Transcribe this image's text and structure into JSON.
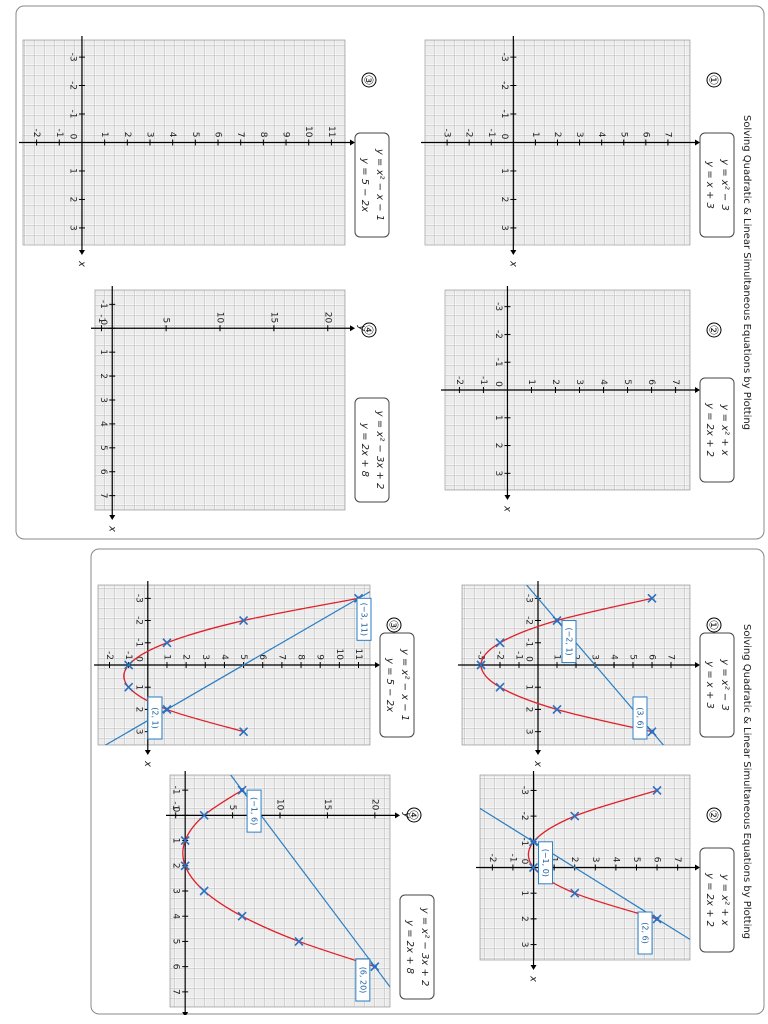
{
  "pages": [
    {
      "title": "Solving Quadratic & Linear Simultaneous Equations by Plotting",
      "graphs": [
        {
          "number": "①",
          "equations": [
            "y = x² − 3",
            "y = x + 3"
          ],
          "x_label": "x",
          "y_label": "y",
          "xlim": [
            -3.6,
            3.6
          ],
          "ylim": [
            -4,
            8
          ],
          "xticks": [
            -3,
            -2,
            -1,
            0,
            1,
            2,
            3
          ],
          "yticks": [
            -3,
            -2,
            -1,
            1,
            2,
            3,
            4,
            5,
            6,
            7
          ]
        },
        {
          "number": "②",
          "equations": [
            "y = x² + x",
            "y = 2x + 2"
          ],
          "x_label": "x",
          "y_label": "y",
          "xlim": [
            -3.6,
            3.6
          ],
          "ylim": [
            -2.6,
            7.6
          ],
          "xticks": [
            -3,
            -2,
            -1,
            0,
            1,
            2,
            3
          ],
          "yticks": [
            -2,
            -1,
            1,
            2,
            3,
            4,
            5,
            6,
            7
          ]
        },
        {
          "number": "③",
          "equations": [
            "y = x² − x − 1",
            "y = 5 − 2x"
          ],
          "x_label": "x",
          "y_label": "y",
          "xlim": [
            -3.6,
            3.6
          ],
          "ylim": [
            -2.6,
            11.6
          ],
          "xticks": [
            -3,
            -2,
            -1,
            0,
            1,
            2,
            3
          ],
          "yticks": [
            -2,
            -1,
            1,
            2,
            3,
            4,
            5,
            6,
            7,
            8,
            9,
            10,
            11
          ]
        },
        {
          "number": "④",
          "equations": [
            "y = x² − 3x + 2",
            "y = 2x + 8"
          ],
          "x_label": "x",
          "y_label": "y",
          "xlim": [
            -1.6,
            7.6
          ],
          "ylim": [
            -1.6,
            21.6
          ],
          "xticks": [
            -1,
            0,
            1,
            2,
            3,
            4,
            5,
            6,
            7
          ],
          "yticks": [
            -1,
            5,
            10,
            15,
            20
          ]
        }
      ]
    },
    {
      "title": "Solving Quadratic & Linear Simultaneous Equations by Plotting",
      "graphs": [
        {
          "number": "①",
          "equations": [
            "y = x² − 3",
            "y = x + 3"
          ],
          "x_label": "x",
          "y_label": "y",
          "xlim": [
            -3.6,
            3.6
          ],
          "ylim": [
            -4,
            8
          ],
          "xticks": [
            -3,
            -2,
            -1,
            0,
            1,
            2,
            3
          ],
          "yticks": [
            -3,
            -2,
            -1,
            1,
            2,
            3,
            4,
            5,
            6,
            7
          ],
          "curve": {
            "x": [
              -3,
              -2,
              -1,
              0,
              1,
              2,
              3
            ],
            "y": [
              6,
              1,
              -2,
              -3,
              -2,
              1,
              6
            ]
          },
          "line": {
            "x": [
              -2,
              3
            ],
            "y": [
              1,
              6
            ]
          },
          "solutions": [
            {
              "x": -2,
              "y": 1,
              "label": "(−2, 1)"
            },
            {
              "x": 3,
              "y": 6,
              "label": "(3, 6)"
            }
          ]
        },
        {
          "number": "②",
          "equations": [
            "y = x² + x",
            "y = 2x + 2"
          ],
          "x_label": "x",
          "y_label": "y",
          "xlim": [
            -3.6,
            3.6
          ],
          "ylim": [
            -2.6,
            7.6
          ],
          "xticks": [
            -3,
            -2,
            -1,
            0,
            1,
            2,
            3
          ],
          "yticks": [
            -2,
            -1,
            1,
            2,
            3,
            4,
            5,
            6,
            7
          ],
          "curve": {
            "x": [
              -3,
              -2,
              -1,
              0,
              1,
              2
            ],
            "y": [
              6,
              2,
              0,
              0,
              2,
              6
            ]
          },
          "line": {
            "x": [
              -1,
              2
            ],
            "y": [
              0,
              6
            ]
          },
          "solutions": [
            {
              "x": -1,
              "y": 0,
              "label": "(−1, 0)"
            },
            {
              "x": 2,
              "y": 6,
              "label": "(2, 6)"
            }
          ]
        },
        {
          "number": "③",
          "equations": [
            "y = x² − x − 1",
            "y = 5 − 2x"
          ],
          "x_label": "x",
          "y_label": "y",
          "xlim": [
            -3.6,
            3.6
          ],
          "ylim": [
            -2.6,
            11.6
          ],
          "xticks": [
            -3,
            -2,
            -1,
            0,
            1,
            2,
            3
          ],
          "yticks": [
            -2,
            -1,
            1,
            2,
            3,
            4,
            5,
            6,
            7,
            8,
            9,
            10,
            11
          ],
          "curve": {
            "x": [
              -3,
              -2,
              -1,
              0,
              1,
              2,
              3
            ],
            "y": [
              11,
              5,
              1,
              -1,
              -1,
              1,
              5
            ]
          },
          "line": {
            "x": [
              -3,
              2
            ],
            "y": [
              11,
              1
            ]
          },
          "solutions": [
            {
              "x": -3,
              "y": 11,
              "label": "(−3, 11)"
            },
            {
              "x": 2,
              "y": 1,
              "label": "(2, 1)"
            }
          ]
        },
        {
          "number": "④",
          "equations": [
            "y = x² − 3x + 2",
            "y = 2x + 8"
          ],
          "x_label": "x",
          "y_label": "y",
          "xlim": [
            -1.6,
            7.6
          ],
          "ylim": [
            -1.6,
            21.6
          ],
          "xticks": [
            -1,
            0,
            1,
            2,
            3,
            4,
            5,
            6,
            7
          ],
          "yticks": [
            -1,
            5,
            10,
            15,
            20
          ],
          "curve": {
            "x": [
              -1,
              0,
              1,
              2,
              3,
              4,
              5,
              6
            ],
            "y": [
              6,
              2,
              0,
              0,
              2,
              6,
              12,
              20
            ]
          },
          "line": {
            "x": [
              -1,
              6
            ],
            "y": [
              6,
              20
            ]
          },
          "solutions": [
            {
              "x": -1,
              "y": 6,
              "label": "(−1, 6)"
            },
            {
              "x": 6,
              "y": 20,
              "label": "(6, 20)"
            }
          ]
        }
      ]
    }
  ]
}
